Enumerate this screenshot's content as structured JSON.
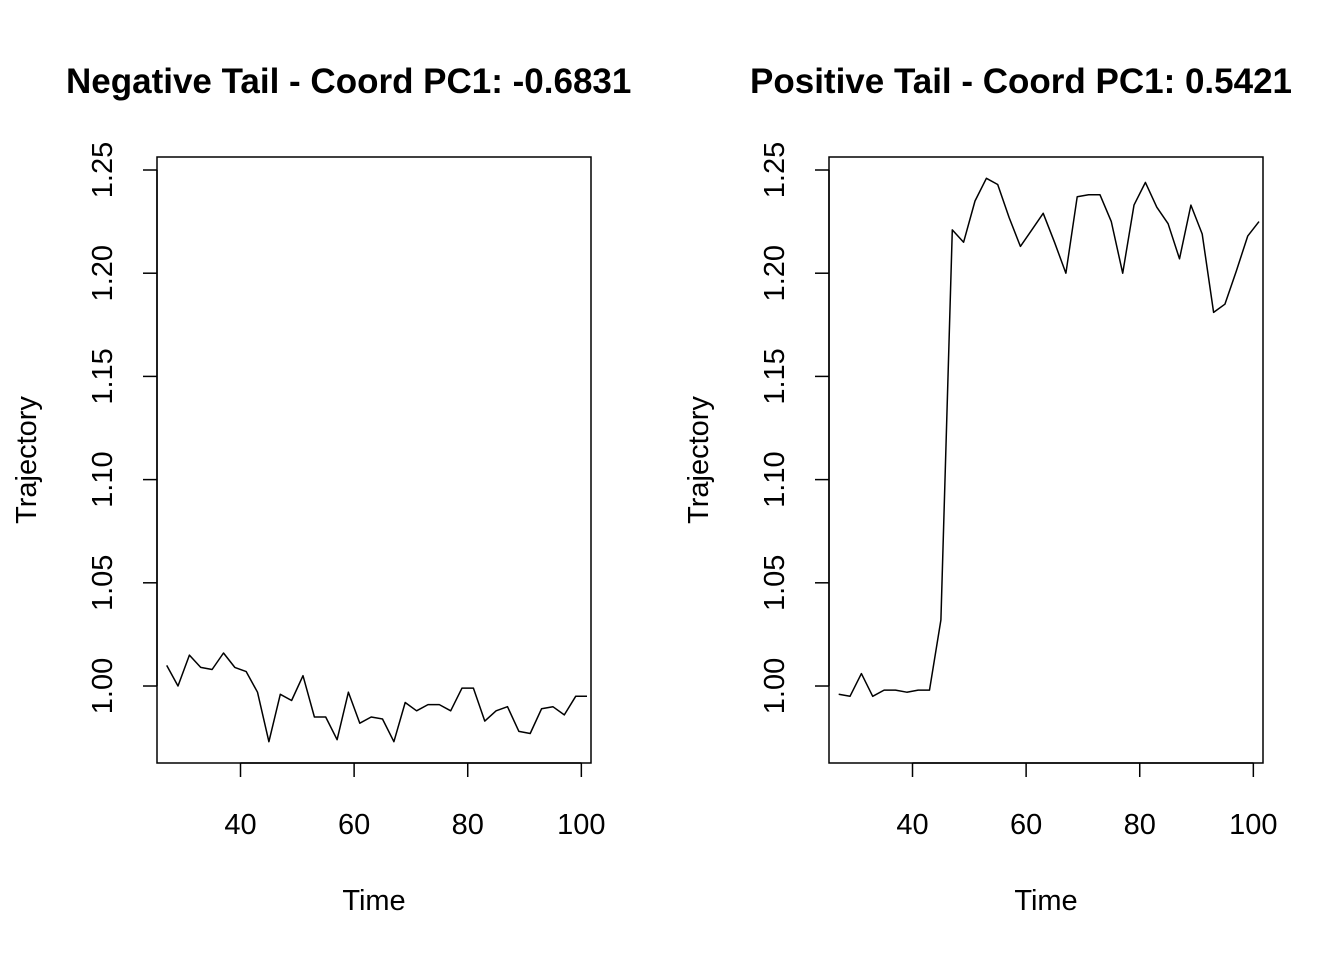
{
  "chart_data": [
    {
      "type": "line",
      "title": "Negative Tail - Coord PC1: -0.6831",
      "xlabel": "Time",
      "ylabel": "Trajectory",
      "xlim": [
        25.3,
        101.7
      ],
      "ylim": [
        0.9627,
        1.2563
      ],
      "xticks": [
        40,
        60,
        80,
        100
      ],
      "xtick_labels": [
        "40",
        "60",
        "80",
        "100"
      ],
      "yticks": [
        1.0,
        1.05,
        1.1,
        1.15,
        1.2,
        1.25
      ],
      "ytick_labels": [
        "1.00",
        "1.05",
        "1.10",
        "1.15",
        "1.20",
        "1.25"
      ],
      "grid": false,
      "color": "#000000",
      "x": [
        27,
        29,
        31,
        33,
        35,
        37,
        39,
        41,
        43,
        45,
        47,
        49,
        51,
        53,
        55,
        57,
        59,
        61,
        63,
        65,
        67,
        69,
        71,
        73,
        75,
        77,
        79,
        81,
        83,
        85,
        87,
        89,
        91,
        93,
        95,
        97,
        99,
        101
      ],
      "y": [
        1.01,
        1.0,
        1.015,
        1.009,
        1.008,
        1.016,
        1.009,
        1.007,
        0.997,
        0.973,
        0.996,
        0.993,
        1.005,
        0.985,
        0.985,
        0.974,
        0.997,
        0.982,
        0.985,
        0.984,
        0.973,
        0.992,
        0.988,
        0.991,
        0.991,
        0.988,
        0.999,
        0.999,
        0.983,
        0.988,
        0.99,
        0.978,
        0.977,
        0.989,
        0.99,
        0.986,
        0.995,
        0.995
      ]
    },
    {
      "type": "line",
      "title": "Positive Tail - Coord PC1: 0.5421",
      "xlabel": "Time",
      "ylabel": "Trajectory",
      "xlim": [
        25.3,
        101.7
      ],
      "ylim": [
        0.9627,
        1.2563
      ],
      "xticks": [
        40,
        60,
        80,
        100
      ],
      "xtick_labels": [
        "40",
        "60",
        "80",
        "100"
      ],
      "yticks": [
        1.0,
        1.05,
        1.1,
        1.15,
        1.2,
        1.25
      ],
      "ytick_labels": [
        "1.00",
        "1.05",
        "1.10",
        "1.15",
        "1.20",
        "1.25"
      ],
      "grid": false,
      "color": "#000000",
      "x": [
        27,
        29,
        31,
        33,
        35,
        37,
        39,
        41,
        43,
        45,
        47,
        49,
        51,
        53,
        55,
        57,
        59,
        61,
        63,
        65,
        67,
        69,
        71,
        73,
        75,
        77,
        79,
        81,
        83,
        85,
        87,
        89,
        91,
        93,
        95,
        97,
        99,
        101
      ],
      "y": [
        0.996,
        0.995,
        1.006,
        0.995,
        0.998,
        0.998,
        0.997,
        0.998,
        0.998,
        1.032,
        1.221,
        1.215,
        1.235,
        1.246,
        1.243,
        1.227,
        1.213,
        1.221,
        1.229,
        1.215,
        1.2,
        1.237,
        1.238,
        1.238,
        1.225,
        1.2,
        1.233,
        1.244,
        1.232,
        1.224,
        1.207,
        1.233,
        1.219,
        1.181,
        1.185,
        1.201,
        1.218,
        1.225
      ]
    }
  ]
}
